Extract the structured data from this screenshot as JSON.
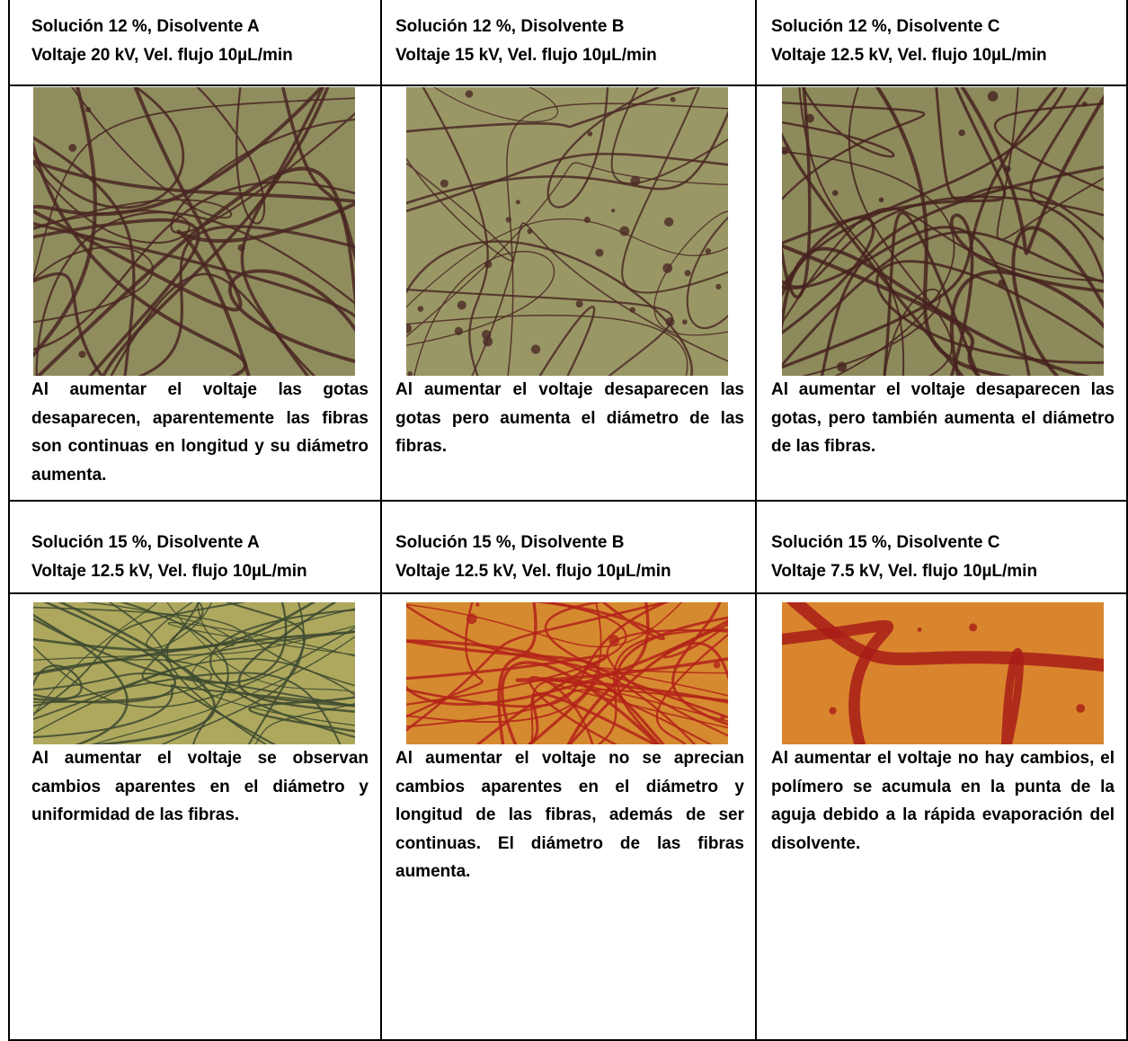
{
  "cells": [
    {
      "line1": "Solución 12 %, Disolvente A",
      "line2": "Voltaje 20 kV, Vel. flujo 10µL/min",
      "caption": "Al aumentar el voltaje las gotas desaparecen, aparentemente las fibras son continuas en longitud y su diámetro aumenta."
    },
    {
      "line1": "Solución 12 %, Disolvente B",
      "line2": "Voltaje 15 kV, Vel. flujo 10µL/min",
      "caption": "Al aumentar el voltaje desaparecen las gotas pero aumenta el diámetro de las fibras."
    },
    {
      "line1": "Solución 12 %, Disolvente C",
      "line2": "Voltaje 12.5 kV, Vel. flujo 10µL/min",
      "caption": "Al aumentar el voltaje desaparecen las gotas, pero también aumenta el diámetro de las fibras."
    },
    {
      "line1": "Solución 15 %, Disolvente A",
      "line2": "Voltaje 12.5 kV, Vel. flujo 10µL/min",
      "caption": "Al aumentar el voltaje se observan cambios aparentes en el diámetro y uniformidad de las fibras."
    },
    {
      "line1": "Solución 15 %, Disolvente B",
      "line2": "Voltaje 12.5 kV, Vel. flujo 10µL/min",
      "caption": "Al aumentar el voltaje no se aprecian cambios aparentes en el diámetro y longitud de las fibras, además de ser continuas. El diámetro de las fibras aumenta."
    },
    {
      "line1": "Solución 15 %, Disolvente C",
      "line2": "Voltaje 7.5 kV, Vel. flujo 10µL/min",
      "caption": "Al aumentar el voltaje no hay cambios, el polímero se acumula en la punta de la aguja debido a la rápida evaporación del disolvente."
    }
  ]
}
